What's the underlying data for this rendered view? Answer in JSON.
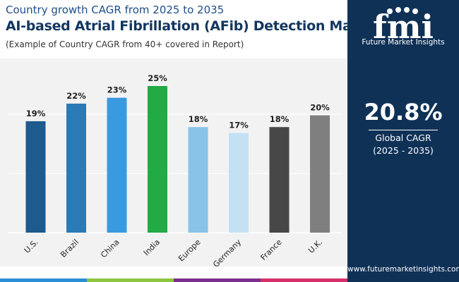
{
  "header": {
    "subtitle": "Country growth CAGR from 2025 to 2035",
    "title": "AI-based Atrial Fibrillation (AFib) Detection Market",
    "note": "(Example of Country CAGR from 40+ covered in Report)"
  },
  "sidebar": {
    "logo_text": "Future Market Insights",
    "cagr_value": "20.8%",
    "cagr_label": "Global CAGR",
    "cagr_period": "(2025 - 2035)",
    "website": "www.futuremarketinsights.com"
  },
  "colors": {
    "sidebar_bg": "#0f3156",
    "accent_line": [
      "#2b8fd6",
      "#8dc63f",
      "#7b2f8e",
      "#d62f6a"
    ]
  },
  "chart_data": {
    "type": "bar",
    "categories": [
      "U.S.",
      "Brazil",
      "China",
      "India",
      "Europe",
      "Germany",
      "France",
      "U.K."
    ],
    "values": [
      19,
      22,
      23,
      25,
      18,
      17,
      18,
      20
    ],
    "labels": [
      "19%",
      "22%",
      "23%",
      "25%",
      "18%",
      "17%",
      "18%",
      "20%"
    ],
    "colors": [
      "#1d5a8e",
      "#2a7ab8",
      "#3a9ae0",
      "#22aa44",
      "#88c3e8",
      "#c3e1f3",
      "#474747",
      "#7f7f7f"
    ],
    "ylim": [
      0,
      25
    ],
    "grid": true
  }
}
